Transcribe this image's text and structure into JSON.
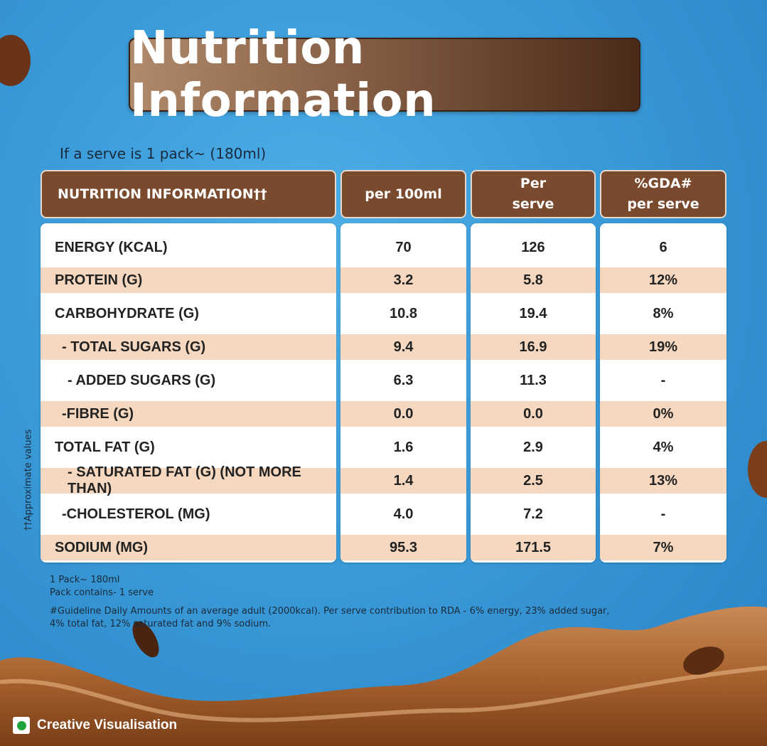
{
  "title": "Nutrition Information",
  "serve_note": "If a serve is 1 pack~ (180ml)",
  "headers": [
    "NUTRITION INFORMATION††",
    "per 100ml",
    "Per\nserve",
    "%GDA#\nper serve"
  ],
  "rows": [
    {
      "name": "ENERGY (KCAL)",
      "per100": "70",
      "perServe": "126",
      "gda": "6"
    },
    {
      "name": "PROTEIN (G)",
      "per100": "3.2",
      "perServe": "5.8",
      "gda": "12%"
    },
    {
      "name": "CARBOHYDRATE (G)",
      "per100": "10.8",
      "perServe": "19.4",
      "gda": "8%"
    },
    {
      "name": "- TOTAL SUGARS (G)",
      "per100": "9.4",
      "perServe": "16.9",
      "gda": "19%"
    },
    {
      "name": "- ADDED SUGARS (G)",
      "per100": "6.3",
      "perServe": "11.3",
      "gda": "-"
    },
    {
      "name": "-FIBRE (G)",
      "per100": "0.0",
      "perServe": "0.0",
      "gda": "0%"
    },
    {
      "name": "TOTAL FAT (G)",
      "per100": "1.6",
      "perServe": "2.9",
      "gda": "4%"
    },
    {
      "name": "- SATURATED FAT (G) (NOT MORE THAN)",
      "per100": "1.4",
      "perServe": "2.5",
      "gda": "13%"
    },
    {
      "name": "-CHOLESTEROL (MG)",
      "per100": "4.0",
      "perServe": "7.2",
      "gda": "-"
    },
    {
      "name": "SODIUM (MG)",
      "per100": "95.3",
      "perServe": "171.5",
      "gda": "7%"
    }
  ],
  "side_note": "††Approximate values",
  "footnotes": [
    "1 Pack~ 180ml",
    "Pack contains- 1 serve",
    "#Guideline Daily Amounts of an average adult (2000kcal). Per serve contribution to RDA - 6% energy, 23% added sugar,",
    "4% total fat, 12% saturated fat and 9% sodium."
  ],
  "badge_text": "Creative Visualisation",
  "colors": {
    "header_brown": "#7a4a2e",
    "row_shade": "#f5d8bf",
    "background_blue": "#3a9ad8",
    "veg_green": "#1ea33a"
  }
}
